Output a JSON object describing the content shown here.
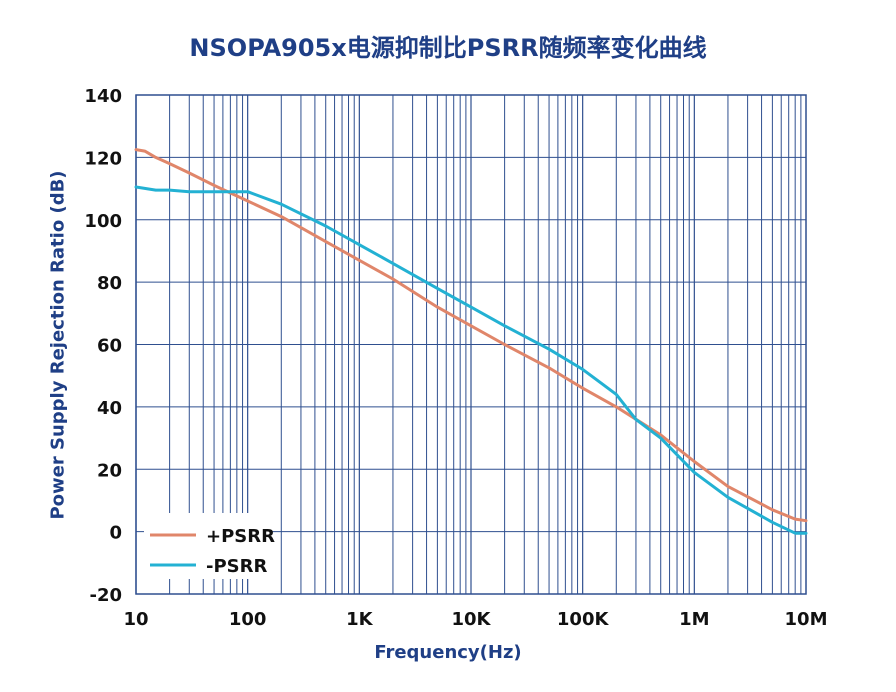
{
  "chart_data": {
    "type": "line",
    "title": "NSOPA905x电源抑制比PSRR随频率变化曲线",
    "xlabel": "Frequency(Hz)",
    "ylabel": "Power Supply Rejection Ratio (dB)",
    "xscale": "log",
    "xlim": [
      10,
      10000000
    ],
    "ylim": [
      -20,
      140
    ],
    "grid": true,
    "legend_position": "bottom-left",
    "x_ticks": [
      {
        "value": 10,
        "label": "10"
      },
      {
        "value": 100,
        "label": "100"
      },
      {
        "value": 1000,
        "label": "1K"
      },
      {
        "value": 10000,
        "label": "10K"
      },
      {
        "value": 100000,
        "label": "100K"
      },
      {
        "value": 1000000,
        "label": "1M"
      },
      {
        "value": 10000000,
        "label": "10M"
      }
    ],
    "y_ticks": [
      {
        "value": 140,
        "label": "140"
      },
      {
        "value": 120,
        "label": "120"
      },
      {
        "value": 100,
        "label": "100"
      },
      {
        "value": 80,
        "label": "80"
      },
      {
        "value": 60,
        "label": "60"
      },
      {
        "value": 40,
        "label": "40"
      },
      {
        "value": 20,
        "label": "20"
      },
      {
        "value": 0,
        "label": "0"
      },
      {
        "value": -20,
        "label": "-20"
      }
    ],
    "series": [
      {
        "name": "+PSRR",
        "color": "#e0866a",
        "x": [
          10,
          12,
          15,
          20,
          30,
          50,
          100,
          200,
          500,
          1000,
          2000,
          5000,
          10000,
          20000,
          50000,
          100000,
          200000,
          500000,
          1000000,
          2000000,
          5000000,
          8000000,
          10000000
        ],
        "y": [
          122.5,
          122,
          120,
          118,
          115,
          111,
          106,
          101,
          93,
          87,
          81,
          72,
          66,
          60,
          52.5,
          46,
          40,
          31,
          22.5,
          14.5,
          7,
          4,
          3.5
        ]
      },
      {
        "name": "-PSRR",
        "color": "#23b1d3",
        "x": [
          10,
          15,
          20,
          30,
          50,
          100,
          200,
          500,
          1000,
          2000,
          5000,
          10000,
          20000,
          50000,
          100000,
          200000,
          300000,
          500000,
          1000000,
          2000000,
          5000000,
          8000000,
          10000000
        ],
        "y": [
          110.5,
          109.5,
          109.5,
          109,
          109,
          109,
          105,
          98,
          92,
          86,
          78,
          72,
          66,
          58.5,
          52,
          44,
          36,
          30,
          19,
          11,
          3,
          -0.5,
          -0.5
        ]
      }
    ]
  }
}
